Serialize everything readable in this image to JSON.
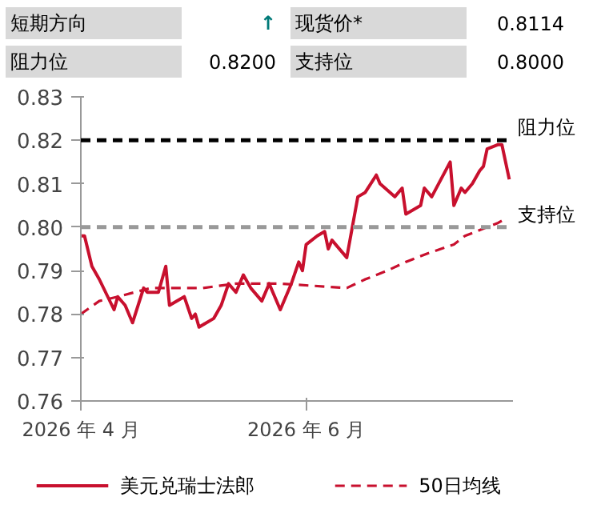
{
  "chart_data": {
    "type": "line",
    "annotations": [
      "短期方向",
      "↑",
      "现货价*",
      "0.8114",
      "阻力位",
      "0.8200",
      "支持位",
      "0.8000"
    ],
    "series": [
      {
        "name": "美元兑瑞士法郎",
        "color": "#c8102e",
        "line_style": "solid",
        "x": [
          "2026-04-01",
          "2026-04-02",
          "2026-04-04",
          "2026-04-06",
          "2026-04-10",
          "2026-04-11",
          "2026-04-13",
          "2026-04-15",
          "2026-04-18",
          "2026-04-19",
          "2026-04-22",
          "2026-04-24",
          "2026-04-25",
          "2026-04-29",
          "2026-05-01",
          "2026-05-02",
          "2026-05-03",
          "2026-05-07",
          "2026-05-09",
          "2026-05-11",
          "2026-05-13",
          "2026-05-15",
          "2026-05-17",
          "2026-05-20",
          "2026-05-22",
          "2026-05-25",
          "2026-05-28",
          "2026-05-30",
          "2026-05-31",
          "2026-06-01",
          "2026-06-04",
          "2026-06-06",
          "2026-06-07",
          "2026-06-08",
          "2026-06-12",
          "2026-06-15",
          "2026-06-17",
          "2026-06-20",
          "2026-06-21",
          "2026-06-25",
          "2026-06-27",
          "2026-06-28",
          "2026-07-02",
          "2026-07-03",
          "2026-07-05",
          "2026-07-10",
          "2026-07-11",
          "2026-07-13",
          "2026-07-14",
          "2026-07-16",
          "2026-07-18",
          "2026-07-19",
          "2026-07-20",
          "2026-07-23",
          "2026-07-24",
          "2026-07-26"
        ],
        "values": [
          0.798,
          0.798,
          0.791,
          0.788,
          0.781,
          0.784,
          0.782,
          0.778,
          0.786,
          0.785,
          0.785,
          0.791,
          0.782,
          0.784,
          0.779,
          0.78,
          0.777,
          0.779,
          0.782,
          0.787,
          0.785,
          0.789,
          0.786,
          0.783,
          0.787,
          0.781,
          0.787,
          0.792,
          0.79,
          0.796,
          0.798,
          0.799,
          0.795,
          0.797,
          0.793,
          0.807,
          0.808,
          0.812,
          0.81,
          0.807,
          0.809,
          0.803,
          0.805,
          0.809,
          0.807,
          0.815,
          0.805,
          0.809,
          0.808,
          0.81,
          0.813,
          0.814,
          0.818,
          0.819,
          0.819,
          0.811
        ]
      },
      {
        "name": "50日均线",
        "color": "#c8102e",
        "line_style": "dashed",
        "x": [
          "2026-04-01",
          "2026-04-06",
          "2026-04-11",
          "2026-04-20",
          "2026-05-04",
          "2026-05-13",
          "2026-05-25",
          "2026-06-12",
          "2026-06-17",
          "2026-06-23",
          "2026-06-28",
          "2026-07-04",
          "2026-07-11",
          "2026-07-14",
          "2026-07-23",
          "2026-07-25"
        ],
        "values": [
          0.78,
          0.783,
          0.784,
          0.786,
          0.786,
          0.787,
          0.787,
          0.786,
          0.788,
          0.79,
          0.792,
          0.794,
          0.796,
          0.798,
          0.801,
          0.802
        ]
      }
    ],
    "xlim": [
      "2026-04-01",
      "2026-07-27"
    ],
    "xticks": [
      {
        "value": "2026-04-01",
        "label": "2026 年 4 月"
      },
      {
        "value": "2026-06-01",
        "label": "2026 年 6 月"
      }
    ],
    "ylim": [
      0.76,
      0.83
    ],
    "yticks": [
      {
        "value": 0.76,
        "label": "0.76"
      },
      {
        "value": 0.77,
        "label": "0.77"
      },
      {
        "value": 0.78,
        "label": "0.78"
      },
      {
        "value": 0.79,
        "label": "0.79"
      },
      {
        "value": 0.8,
        "label": "0.80"
      },
      {
        "value": 0.81,
        "label": "0.81"
      },
      {
        "value": 0.82,
        "label": "0.82"
      },
      {
        "value": 0.83,
        "label": "0.83"
      }
    ],
    "ref_lines": [
      {
        "axis": "y",
        "value": 0.82,
        "label": "阻力位",
        "color": "#000000",
        "line_style": "dashed"
      },
      {
        "axis": "y",
        "value": 0.8,
        "label": "支持位",
        "color": "#999999",
        "line_style": "dashed"
      }
    ],
    "grid": false,
    "legend": "bottom"
  }
}
